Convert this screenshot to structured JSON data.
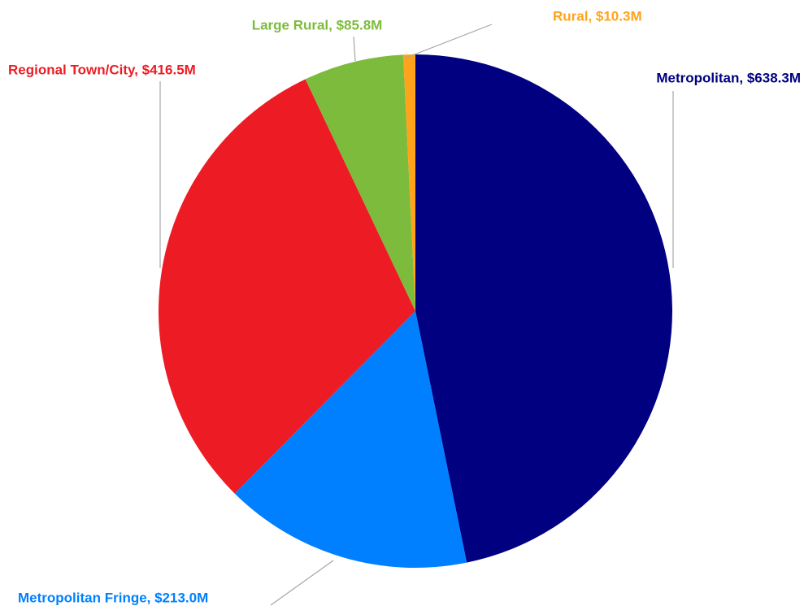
{
  "chart_data": {
    "type": "pie",
    "values": [
      638.3,
      213.0,
      416.5,
      85.8,
      10.3
    ],
    "value_labels": [
      "Metropolitan, $638.3M",
      "Metropolitan  Fringe, $213.0M",
      "Regional Town/City, $416.5M",
      "Large Rural, $85.8M",
      "Rural, $10.3M"
    ],
    "colors": [
      "#000080",
      "#0080ff",
      "#ed1c24",
      "#7dbb3c",
      "#ffa31a"
    ]
  }
}
